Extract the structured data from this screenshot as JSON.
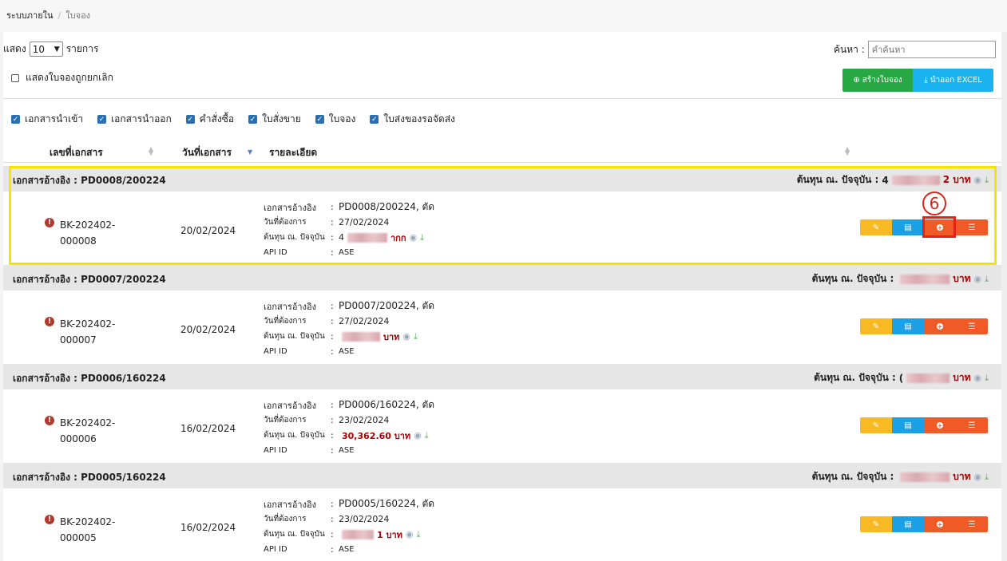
{
  "breadcrumb": {
    "root": "ระบบภายใน",
    "current": "ใบจอง"
  },
  "toolbar": {
    "show_label": "แสดง",
    "show_value": "10",
    "show_unit": "รายการ",
    "search_label": "ค้นหา :",
    "search_placeholder": "คำค้นหา",
    "show_cancelled_label": "แสดงใบจองถูกยกเลิก",
    "create_label": "สร้างใบจอง",
    "excel_label": "นำออก EXCEL"
  },
  "filters": [
    {
      "label": "เอกสารนำเข้า",
      "checked": true
    },
    {
      "label": "เอกสารนำออก",
      "checked": true
    },
    {
      "label": "คำสั่งซื้อ",
      "checked": true
    },
    {
      "label": "ใบสั่งขาย",
      "checked": true
    },
    {
      "label": "ใบจอง",
      "checked": true
    },
    {
      "label": "ใบส่งของรอจัดส่ง",
      "checked": true
    }
  ],
  "table": {
    "headers": {
      "doc_no": "เลขที่เอกสาร",
      "date": "วันที่เอกสาร",
      "detail": "รายละเอียด"
    },
    "group_prefix": "เอกสารอ้างอิง : ",
    "cost_label": "ต้นทุน ณ. ปัจจุบัน :",
    "baht": "บาท",
    "detail_labels": {
      "ref": "เอกสารอ้างอิง",
      "need_date": "วันที่ต้องการ",
      "cost": "ต้นทุน ณ. ปัจจุบัน",
      "api": "API ID",
      "colon": ":"
    },
    "groups": [
      {
        "ref": "PD0008/200224",
        "cost_prefix": "4",
        "cost_suffix": "2 บาท",
        "doc_line1": "BK-202402-",
        "doc_line2": "000008",
        "date": "20/02/2024",
        "detail_ref": "PD0008/200224, ตัด",
        "need_date": "27/02/2024",
        "detail_cost_prefix": "4",
        "detail_cost_suffix": "ากก",
        "api_id": "ASE"
      },
      {
        "ref": "PD0007/200224",
        "cost_prefix": "",
        "cost_suffix": "บาท",
        "doc_line1": "BK-202402-",
        "doc_line2": "000007",
        "date": "20/02/2024",
        "detail_ref": "PD0007/200224, ตัด",
        "need_date": "27/02/2024",
        "detail_cost_prefix": "",
        "detail_cost_suffix": "บาท",
        "api_id": "ASE"
      },
      {
        "ref": "PD0006/160224",
        "cost_prefix": "(",
        "cost_suffix": "บาท",
        "doc_line1": "BK-202402-",
        "doc_line2": "000006",
        "date": "16/02/2024",
        "detail_ref": "PD0006/160224, ตัด",
        "need_date": "23/02/2024",
        "detail_cost_prefix": "",
        "detail_cost_suffix": "30,362.60 บาท",
        "api_id": "ASE"
      },
      {
        "ref": "PD0005/160224",
        "cost_prefix": "",
        "cost_suffix": "บาท",
        "doc_line1": "BK-202402-",
        "doc_line2": "000005",
        "date": "16/02/2024",
        "detail_ref": "PD0005/160224, ตัด",
        "need_date": "23/02/2024",
        "detail_cost_prefix": "",
        "detail_cost_suffix": "1 บาท",
        "api_id": "ASE"
      }
    ]
  },
  "annotation": {
    "step": "6"
  },
  "colors": {
    "highlight": "#f5e400",
    "callout": "#e0231b",
    "create": "#27a844",
    "excel": "#1ab3ef"
  }
}
